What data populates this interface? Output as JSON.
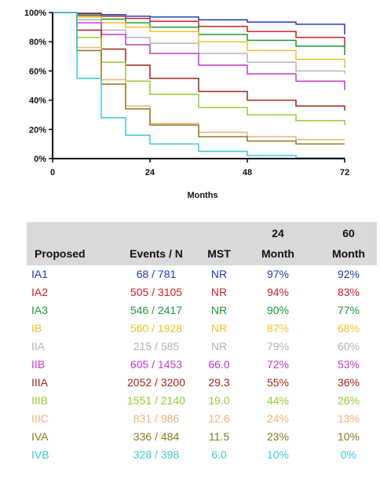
{
  "chart_data": {
    "type": "line",
    "xlabel": "Months",
    "ylabel": "",
    "xlim": [
      0,
      72
    ],
    "ylim": [
      0,
      100
    ],
    "x_ticks": [
      "0",
      "24",
      "48",
      "72"
    ],
    "y_ticks": [
      "0%",
      "20%",
      "40%",
      "60%",
      "80%",
      "100%"
    ],
    "grid": false,
    "x": [
      0,
      6,
      12,
      18,
      24,
      36,
      48,
      60,
      72
    ],
    "series": [
      {
        "name": "IA1",
        "color": "#1f3bb3",
        "values": [
          100,
          99.5,
          98.5,
          97.5,
          97,
          95,
          93.5,
          92,
          85
        ]
      },
      {
        "name": "IA2",
        "color": "#d11f2a",
        "values": [
          100,
          99,
          97.5,
          96,
          94,
          90.5,
          87,
          83,
          77
        ]
      },
      {
        "name": "IA3",
        "color": "#1a9a3a",
        "values": [
          100,
          98,
          95.5,
          93,
          90,
          85,
          81,
          77,
          71
        ]
      },
      {
        "name": "IB",
        "color": "#f0c229",
        "values": [
          100,
          97,
          93,
          90,
          87,
          80,
          74,
          68,
          62
        ]
      },
      {
        "name": "IIA",
        "color": "#b3b3b3",
        "values": [
          100,
          95,
          88,
          83,
          79,
          72,
          66,
          60,
          58
        ]
      },
      {
        "name": "IIB",
        "color": "#c339c8",
        "values": [
          100,
          93,
          85,
          78,
          72,
          64,
          58,
          53,
          47
        ]
      },
      {
        "name": "IIIA",
        "color": "#a3271c",
        "values": [
          100,
          88,
          75,
          64,
          55,
          46,
          40,
          36,
          33
        ]
      },
      {
        "name": "IIIB",
        "color": "#96cc33",
        "values": [
          100,
          83,
          66,
          53,
          44,
          35,
          30,
          26,
          23
        ]
      },
      {
        "name": "IIIC",
        "color": "#f2b07a",
        "values": [
          100,
          76,
          54,
          36,
          24,
          18,
          15,
          13,
          13
        ]
      },
      {
        "name": "IVA",
        "color": "#8a7a1f",
        "values": [
          100,
          74,
          51,
          34,
          23,
          15,
          12,
          10,
          10
        ]
      },
      {
        "name": "IVB",
        "color": "#3cc9d6",
        "values": [
          100,
          55,
          28,
          16,
          10,
          5,
          2,
          0.5,
          0
        ]
      }
    ]
  },
  "table": {
    "headers": {
      "proposed": "Proposed",
      "events": "Events / N",
      "mst": "MST",
      "m24_line1": "24",
      "m24_line2": "Month",
      "m60_line1": "60",
      "m60_line2": "Month"
    },
    "rows": [
      {
        "stage": "IA1",
        "events": "68 / 781",
        "mst": "NR",
        "m24": "97%",
        "m60": "92%",
        "color": "#1f3bb3"
      },
      {
        "stage": "IA2",
        "events": "505 / 3105",
        "mst": "NR",
        "m24": "94%",
        "m60": "83%",
        "color": "#d11f2a"
      },
      {
        "stage": "IA3",
        "events": "546 / 2417",
        "mst": "NR",
        "m24": "90%",
        "m60": "77%",
        "color": "#1a9a3a"
      },
      {
        "stage": "IB",
        "events": "560 / 1928",
        "mst": "NR",
        "m24": "87%",
        "m60": "68%",
        "color": "#f0c229"
      },
      {
        "stage": "IIA",
        "events": "215 / 585",
        "mst": "NR",
        "m24": "79%",
        "m60": "60%",
        "color": "#b3b3b3"
      },
      {
        "stage": "IIB",
        "events": "605 / 1453",
        "mst": "66.0",
        "m24": "72%",
        "m60": "53%",
        "color": "#c339c8"
      },
      {
        "stage": "IIIA",
        "events": "2052 / 3200",
        "mst": "29.3",
        "m24": "55%",
        "m60": "36%",
        "color": "#a3271c"
      },
      {
        "stage": "IIIB",
        "events": "1551 / 2140",
        "mst": "19.0",
        "m24": "44%",
        "m60": "26%",
        "color": "#96cc33"
      },
      {
        "stage": "IIIC",
        "events": "831 / 986",
        "mst": "12.6",
        "m24": "24%",
        "m60": "13%",
        "color": "#f2b07a"
      },
      {
        "stage": "IVA",
        "events": "336 / 484",
        "mst": "11.5",
        "m24": "23%",
        "m60": "10%",
        "color": "#8a7a1f"
      },
      {
        "stage": "IVB",
        "events": "328 / 398",
        "mst": "6.0",
        "m24": "10%",
        "m60": "0%",
        "color": "#3cc9d6"
      }
    ]
  }
}
